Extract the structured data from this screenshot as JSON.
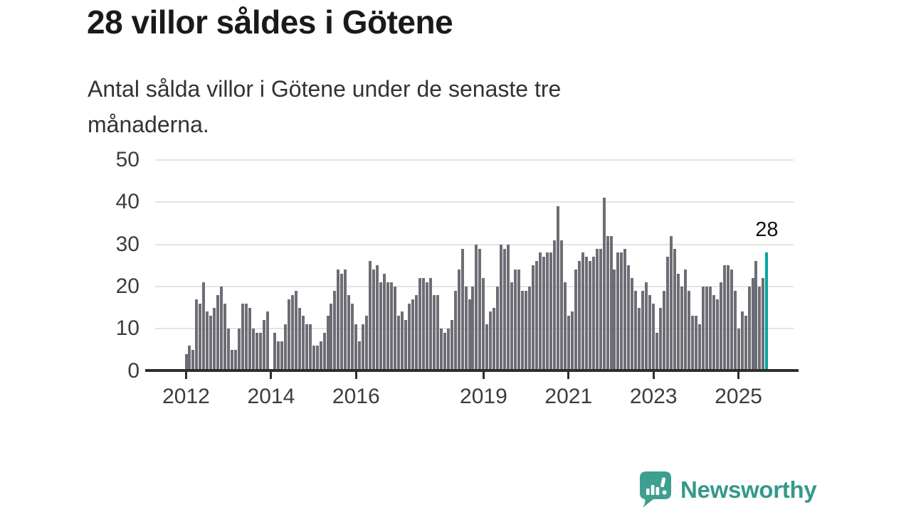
{
  "header": {
    "title": "28 villor såldes i Götene",
    "subtitle_line1": "Antal sålda villor i Götene under de senaste tre",
    "subtitle_line2": "månaderna."
  },
  "chart_data": {
    "type": "bar",
    "title": "28 villor såldes i Götene",
    "subtitle": "Antal sålda villor i Götene under de senaste tre månaderna.",
    "xlabel": "",
    "ylabel": "",
    "x_start": "2012-01",
    "x_end": "2025-09",
    "x_frequency": "monthly",
    "ylim": [
      0,
      50
    ],
    "yticks": [
      0,
      10,
      20,
      30,
      40,
      50
    ],
    "grid": true,
    "legend": "none",
    "xticks": [
      {
        "label": "2012",
        "month_index": 0
      },
      {
        "label": "2014",
        "month_index": 24
      },
      {
        "label": "2016",
        "month_index": 48
      },
      {
        "label": "2019",
        "month_index": 84
      },
      {
        "label": "2021",
        "month_index": 108
      },
      {
        "label": "2023",
        "month_index": 132
      },
      {
        "label": "2025",
        "month_index": 156
      }
    ],
    "values": [
      4,
      6,
      5,
      17,
      16,
      21,
      14,
      13,
      15,
      18,
      20,
      16,
      10,
      5,
      5,
      10,
      16,
      16,
      15,
      10,
      9,
      9,
      12,
      14,
      0,
      9,
      7,
      7,
      11,
      17,
      18,
      19,
      15,
      13,
      11,
      11,
      6,
      6,
      7,
      9,
      13,
      16,
      19,
      24,
      23,
      24,
      18,
      16,
      11,
      7,
      11,
      13,
      26,
      24,
      25,
      21,
      23,
      21,
      21,
      20,
      13,
      14,
      12,
      16,
      17,
      18,
      22,
      22,
      21,
      22,
      18,
      18,
      10,
      9,
      10,
      12,
      19,
      24,
      29,
      20,
      17,
      20,
      30,
      29,
      22,
      11,
      14,
      15,
      20,
      30,
      29,
      30,
      21,
      24,
      24,
      19,
      19,
      20,
      25,
      26,
      28,
      27,
      28,
      28,
      31,
      39,
      31,
      21,
      13,
      14,
      24,
      26,
      28,
      27,
      26,
      27,
      29,
      29,
      41,
      32,
      32,
      24,
      28,
      28,
      29,
      25,
      22,
      19,
      15,
      19,
      21,
      18,
      16,
      9,
      15,
      19,
      27,
      32,
      29,
      23,
      20,
      24,
      19,
      13,
      13,
      11,
      20,
      20,
      20,
      18,
      17,
      21,
      25,
      25,
      24,
      19,
      10,
      14,
      13,
      20,
      22,
      26,
      20,
      22,
      28
    ],
    "highlight": {
      "index": 164,
      "label": "28",
      "value": 28
    }
  },
  "branding": {
    "name": "Newsworthy"
  },
  "colors": {
    "background": "#ffffff",
    "title": "#1a1a1a",
    "subtitle": "#333333",
    "axis": "#2e2e2e",
    "axis_label": "#3c3c3c",
    "grid": "#e4e4e4",
    "bar": "#6d6d75",
    "highlight": "#00a79e",
    "annotation": "#111111",
    "logo": "#3d9f90",
    "logo_text": "#35998b"
  }
}
